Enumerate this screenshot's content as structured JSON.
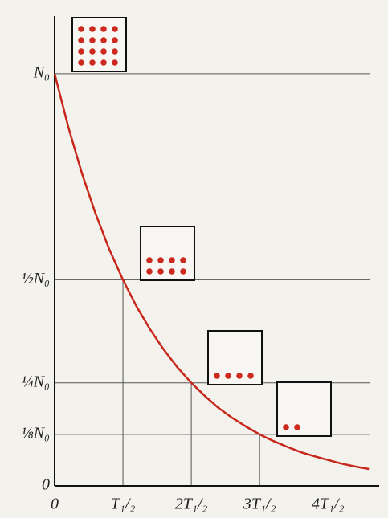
{
  "chart_data": {
    "type": "line",
    "x": [
      0,
      0.2,
      0.4,
      0.6,
      0.8,
      1.0,
      1.2,
      1.4,
      1.6,
      1.8,
      2.0,
      2.2,
      2.4,
      2.6,
      2.8,
      3.0,
      3.2,
      3.4,
      3.6,
      3.8,
      4.0,
      4.2,
      4.4,
      4.6
    ],
    "series": [
      {
        "color": "#c8281c",
        "values": [
          1,
          0.871,
          0.758,
          0.66,
          0.574,
          0.5,
          0.435,
          0.379,
          0.33,
          0.287,
          0.25,
          0.218,
          0.189,
          0.165,
          0.144,
          0.125,
          0.109,
          0.095,
          0.082,
          0.072,
          0.063,
          0.054,
          0.047,
          0.041
        ]
      }
    ],
    "xlim": [
      0,
      4.75
    ],
    "ylim": [
      0,
      1.14
    ],
    "xticks": [
      0,
      {
        "value": 1,
        "label": "T₁/₂"
      },
      {
        "value": 2,
        "label": "2T₁/₂"
      },
      {
        "value": 3,
        "label": "3T₁/₂"
      },
      {
        "value": 4,
        "label": "4T₁/₂"
      }
    ],
    "yticks": [
      0,
      {
        "value": 0.125,
        "label": "⅛N₀"
      },
      {
        "value": 0.25,
        "label": "¼N₀"
      },
      {
        "value": 0.5,
        "label": "½N₀"
      },
      {
        "value": 1,
        "label": "N₀"
      }
    ],
    "grid": true,
    "box_dot_counts": [
      16,
      8,
      4,
      2
    ],
    "dot_color": "#cc2a1e"
  }
}
